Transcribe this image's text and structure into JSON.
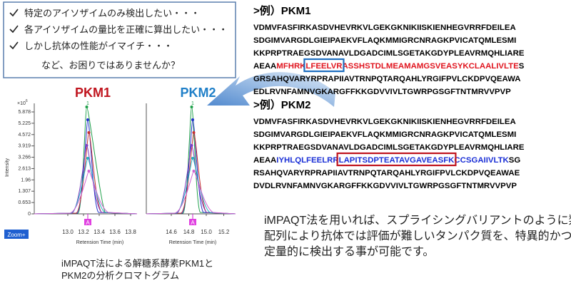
{
  "concerns": {
    "items": [
      "特定のアイソザイムのみ検出したい・・・",
      "各アイソザイムの量比を正確に算出したい・・・",
      "しかし抗体の性能がイマイチ・・・"
    ],
    "question": "など、お困りではありませんか？"
  },
  "sequences": [
    {
      "heading": ">例）PKM1",
      "lines": [
        [
          {
            "text": "VDMVFASFIRKASDVHEVRKVLGEKGKNIKIISKIENHEGVRRFDEILEA"
          }
        ],
        [
          {
            "text": "SDGIMVARGDLGIEIPAEKVFLAQKMMIGRCNRAGKPVICATQMLESMI"
          }
        ],
        [
          {
            "text": "KKPRPTRAEGSDVANAVLDGADCIMLSGETAKGDYPLEAVRMQHLIARE"
          }
        ],
        [
          {
            "text": "AEAA"
          },
          {
            "text": "MFHRK",
            "color": "#e0141e"
          },
          {
            "text": "LFEELVR",
            "color": "#e0141e",
            "box": "#1f6fc0"
          },
          {
            "text": "ASSHSTDLMEAMAMGSVEASYKCLAALIVLTE",
            "color": "#e0141e"
          },
          {
            "text": "S"
          }
        ],
        [
          {
            "text": "GRSAHQVARYRPRAPIIAVTRNPQTARQAHLYRGIFPVLCKDPVQEAWA"
          }
        ],
        [
          {
            "text": "EDLRVNFAMNVGKARGFFKKGDVVIVLTGWRPGSGFTNTMRVVPVP"
          }
        ]
      ]
    },
    {
      "heading": ">例）PKM2",
      "lines": [
        [
          {
            "text": "VDMVFASFIRKASDVHEVRKVLGEKGKNIKIISKIENHEGVRRFDEILEA"
          }
        ],
        [
          {
            "text": "SDGIMVARGDLGIEIPAEKVFLAQKMMIGRCNRAGKPVICATQMLESMI"
          }
        ],
        [
          {
            "text": "KKPRPTRAEGSDVANAVLDGADCIMLSGETAKGDYPLEAVRMQHLIARE"
          }
        ],
        [
          {
            "text": "AEAA"
          },
          {
            "text": "IYHLQLFEELRR",
            "color": "#1a2fd6"
          },
          {
            "text": "LAPITSDPTEATAVGAVEASFK",
            "color": "#1a2fd6",
            "box": "#c0141e"
          },
          {
            "text": "CCSGAIIVLTK",
            "color": "#1a2fd6"
          },
          {
            "text": "SG"
          }
        ],
        [
          {
            "text": "RSAHQVARYRPRAPIIAVTRNPQTARQAHLYRGIFPVLCKDPVQEAWAE"
          }
        ],
        [
          {
            "text": "DVDLRVNFAMNVGKARGFFKKGDVVIVLTGWRPGSGFTNTMRVVPVP"
          }
        ]
      ]
    }
  ],
  "chromatograms": {
    "y_label": "Intensity",
    "x_label": "Retension Time (min)",
    "scale_base": "×10",
    "scale_exp": "6",
    "zoom": "Zoom+",
    "yticks": [
      "5.878",
      "5.225",
      "4.572",
      "3.919",
      "3.266",
      "2.613",
      "1.96",
      "1.307",
      "0.653",
      "0"
    ],
    "caption": [
      "iMPAQT法による解糖系酵素PKM1と",
      "PKM2の分析クロマトグラム"
    ],
    "panels": [
      {
        "title": "PKM1",
        "title_color": "#c0141e",
        "xticks": [
          "13.0",
          "13.2",
          "13.4",
          "13.6",
          "13.8"
        ],
        "peak_label": "1",
        "marker": "A"
      },
      {
        "title": "PKM2",
        "title_color": "#1f7fc8",
        "xticks": [
          "14.6",
          "14.8",
          "15.0",
          "15.2"
        ],
        "peak_label": "1",
        "marker": "A"
      }
    ]
  },
  "conclusion": [
    "iMPAQT法を用いれば、スプライシングバリアントのように類似",
    "配列により抗体では評価が難しいタンパク質を、特異的かつ",
    "定量的に検出する事が可能です。"
  ]
}
